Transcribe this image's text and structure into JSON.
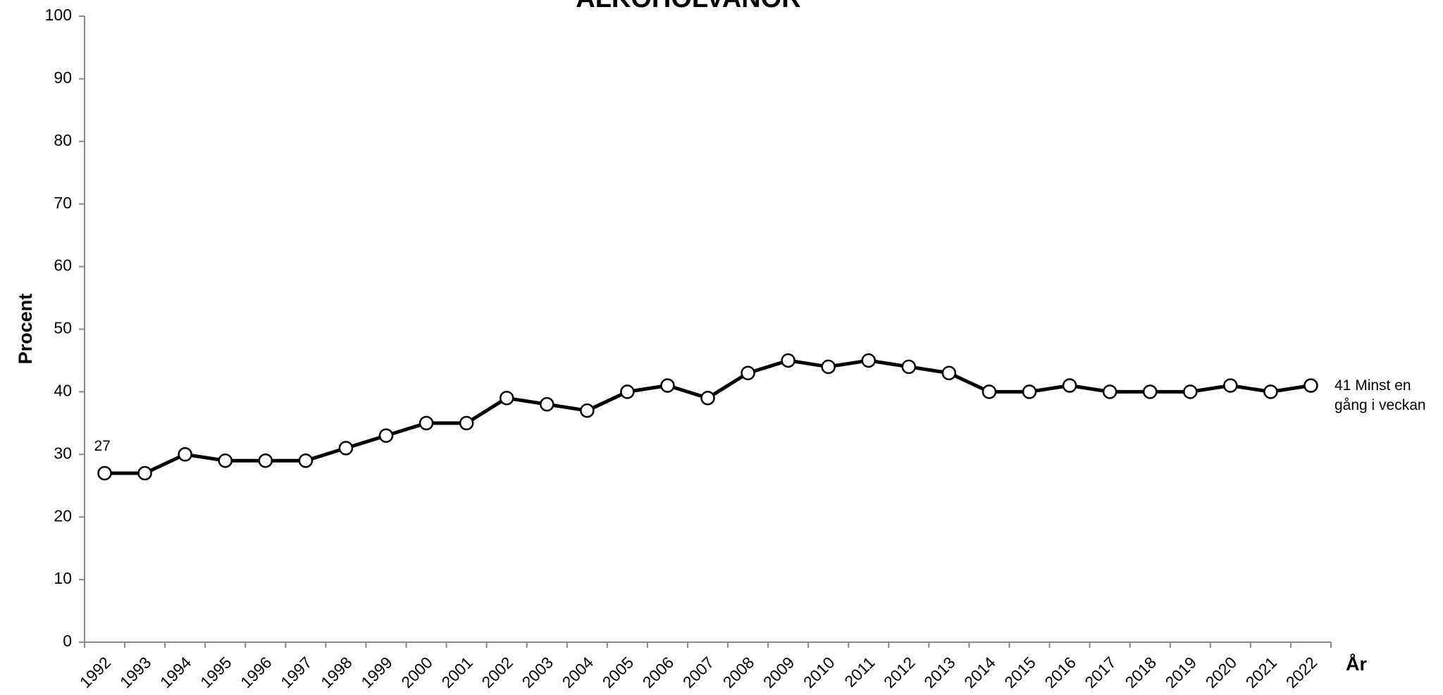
{
  "chart_data": {
    "type": "line",
    "title": "ALKOHOLVANOR",
    "y_label": "Procent",
    "x_label": "År",
    "categories": [
      "1992",
      "1993",
      "1994",
      "1995",
      "1996",
      "1997",
      "1998",
      "1999",
      "2000",
      "2001",
      "2002",
      "2003",
      "2004",
      "2005",
      "2006",
      "2007",
      "2008",
      "2009",
      "2010",
      "2011",
      "2012",
      "2013",
      "2014",
      "2015",
      "2016",
      "2017",
      "2018",
      "2019",
      "2020",
      "2021",
      "2022"
    ],
    "series": [
      {
        "name": "Minst en gång i veckan",
        "color": "#000000",
        "values": [
          27,
          27,
          30,
          29,
          29,
          29,
          31,
          33,
          35,
          35,
          39,
          38,
          37,
          40,
          41,
          39,
          43,
          45,
          44,
          45,
          44,
          43,
          40,
          40,
          41,
          40,
          40,
          40,
          41,
          40,
          41
        ]
      }
    ],
    "ylim": [
      0,
      100
    ],
    "yticks": [
      0,
      10,
      20,
      30,
      40,
      50,
      60,
      70,
      80,
      90,
      100
    ],
    "grid": false
  }
}
